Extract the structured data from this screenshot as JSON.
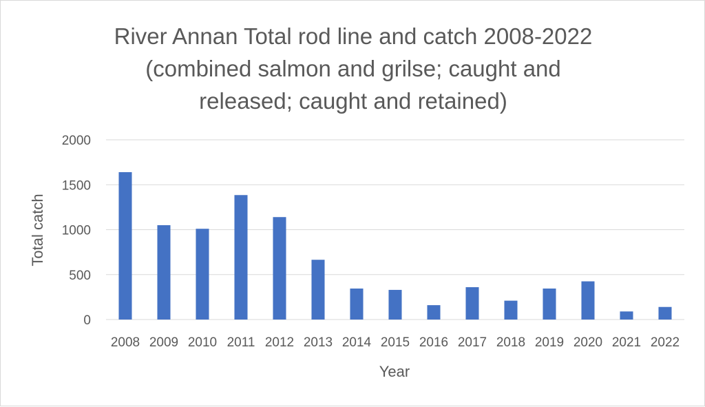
{
  "chart_data": {
    "type": "bar",
    "title_lines": [
      "River Annan Total rod line and catch 2008-2022",
      "(combined salmon and grilse; caught and",
      "released; caught and retained)"
    ],
    "xlabel": "Year",
    "ylabel": "Total catch",
    "ylim": [
      0,
      2000
    ],
    "yticks": [
      0,
      500,
      1000,
      1500,
      2000
    ],
    "categories": [
      "2008",
      "2009",
      "2010",
      "2011",
      "2012",
      "2013",
      "2014",
      "2015",
      "2016",
      "2017",
      "2018",
      "2019",
      "2020",
      "2021",
      "2022"
    ],
    "values": [
      1640,
      1050,
      1010,
      1385,
      1140,
      665,
      345,
      330,
      160,
      360,
      210,
      345,
      425,
      90,
      140
    ],
    "grid": true,
    "legend": "none",
    "colors": {
      "bar": "#4472c4",
      "grid": "#d9d9d9",
      "text": "#595959"
    }
  }
}
